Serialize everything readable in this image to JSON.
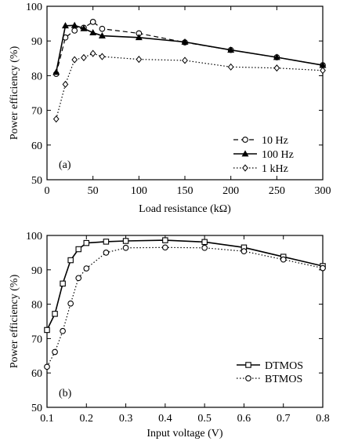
{
  "chart_data": [
    {
      "type": "line",
      "panel_label": "(a)",
      "xlabel": "Load resistance (kΩ)",
      "ylabel": "Power efficiency (%)",
      "xlim": [
        0,
        300
      ],
      "ylim": [
        50,
        100
      ],
      "xticks": [
        0,
        50,
        100,
        150,
        200,
        250,
        300
      ],
      "yticks": [
        50,
        60,
        70,
        80,
        90,
        100
      ],
      "grid": false,
      "legend_position": "bottom-right",
      "series": [
        {
          "name": "10 Hz",
          "marker": "circle",
          "line": "dashed",
          "x": [
            10,
            20,
            30,
            40,
            50,
            60,
            100,
            150,
            200,
            250,
            300
          ],
          "y": [
            80.5,
            91.0,
            93.0,
            93.8,
            95.5,
            93.5,
            92.2,
            89.6,
            87.4,
            85.3,
            83.0
          ]
        },
        {
          "name": "100 Hz",
          "marker": "triangle",
          "line": "solid",
          "x": [
            10,
            20,
            30,
            40,
            50,
            60,
            100,
            150,
            200,
            250,
            300
          ],
          "y": [
            81.0,
            94.4,
            94.5,
            93.6,
            92.4,
            91.5,
            91.0,
            89.7,
            87.4,
            85.3,
            83.0
          ]
        },
        {
          "name": "1 kHz",
          "marker": "diamond",
          "line": "dotted",
          "x": [
            10,
            20,
            30,
            40,
            50,
            60,
            100,
            150,
            200,
            250,
            300
          ],
          "y": [
            67.5,
            77.5,
            84.6,
            85.2,
            86.4,
            85.5,
            84.7,
            84.4,
            82.5,
            82.2,
            81.5
          ]
        }
      ]
    },
    {
      "type": "line",
      "panel_label": "(b)",
      "xlabel": "Input voltage (V)",
      "ylabel": "Power efficiency (%)",
      "xlim": [
        0.1,
        0.8
      ],
      "ylim": [
        50,
        100
      ],
      "xticks": [
        0.1,
        0.2,
        0.3,
        0.4,
        0.5,
        0.6,
        0.7,
        0.8
      ],
      "yticks": [
        50,
        60,
        70,
        80,
        90,
        100
      ],
      "grid": false,
      "legend_position": "bottom-right",
      "series": [
        {
          "name": "DTMOS",
          "marker": "square",
          "line": "solid",
          "x": [
            0.1,
            0.12,
            0.14,
            0.16,
            0.18,
            0.2,
            0.25,
            0.3,
            0.4,
            0.5,
            0.6,
            0.7,
            0.8
          ],
          "y": [
            72.5,
            77.2,
            86.0,
            92.8,
            96.0,
            97.8,
            98.2,
            98.4,
            98.6,
            98.1,
            96.5,
            93.8,
            91.1
          ]
        },
        {
          "name": "BTMOS",
          "marker": "circle",
          "line": "dotted",
          "x": [
            0.1,
            0.12,
            0.14,
            0.16,
            0.18,
            0.2,
            0.25,
            0.3,
            0.4,
            0.5,
            0.6,
            0.7,
            0.8
          ],
          "y": [
            61.8,
            66.1,
            72.2,
            80.2,
            87.6,
            90.4,
            95.0,
            96.4,
            96.5,
            96.4,
            95.4,
            93.0,
            90.5
          ]
        }
      ]
    }
  ]
}
